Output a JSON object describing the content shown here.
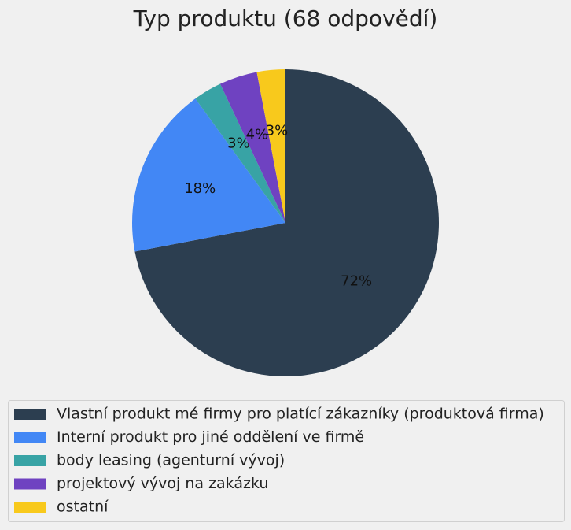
{
  "chart_data": {
    "type": "pie",
    "title": "Typ produktu (68 odpovědí)",
    "categories": [
      "Vlastní produkt mé firmy pro platící zákazníky (produktová firma)",
      "Interní produkt pro jiné oddělení ve firmě",
      "body leasing (agenturní vývoj)",
      "projektový vývoj na zakázku",
      "ostatní"
    ],
    "values": [
      72,
      18,
      3,
      4,
      3
    ],
    "value_labels": [
      "72%",
      "18%",
      "3%",
      "4%",
      "3%"
    ],
    "colors": [
      "#2c3e50",
      "#4287f5",
      "#38a3a5",
      "#6f42c1",
      "#f8c91c"
    ],
    "legend": "bottom"
  }
}
